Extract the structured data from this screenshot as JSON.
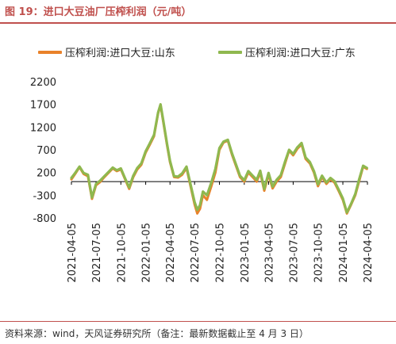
{
  "figure": {
    "title": "图 19：进口大豆油厂压榨利润（元/吨）",
    "source": "资料来源：wind，天风证券研究所（备注：最新数据截止至 4 月 3 日）"
  },
  "chart_data": {
    "type": "line",
    "title": "",
    "xlabel": "",
    "ylabel": "",
    "ylim": [
      -800,
      2200
    ],
    "yticks": [
      -800,
      -300,
      200,
      700,
      1200,
      1700,
      2200
    ],
    "ytick_labels": [
      "-800",
      "-300",
      "200",
      "700",
      "1200",
      "1700",
      "2200"
    ],
    "xlim": [
      "2021-04-05",
      "2024-04-05"
    ],
    "xticks": [
      "2021-04-05",
      "2021-07-05",
      "2021-10-05",
      "2022-01-05",
      "2022-04-05",
      "2022-07-05",
      "2022-10-05",
      "2023-01-05",
      "2023-04-05",
      "2023-07-05",
      "2023-10-05",
      "2024-01-05",
      "2024-04-05"
    ],
    "grid": false,
    "legend_position": "top",
    "series": [
      {
        "name": "压榨利润:进口大豆:山东",
        "color": "#e9822a",
        "points": [
          [
            "2021-04-05",
            50
          ],
          [
            "2021-04-20",
            180
          ],
          [
            "2021-05-05",
            320
          ],
          [
            "2021-05-20",
            170
          ],
          [
            "2021-06-05",
            120
          ],
          [
            "2021-06-20",
            -380
          ],
          [
            "2021-07-05",
            -80
          ],
          [
            "2021-07-20",
            -10
          ],
          [
            "2021-08-05",
            100
          ],
          [
            "2021-08-20",
            190
          ],
          [
            "2021-09-05",
            290
          ],
          [
            "2021-09-20",
            230
          ],
          [
            "2021-10-05",
            270
          ],
          [
            "2021-10-20",
            60
          ],
          [
            "2021-11-05",
            -160
          ],
          [
            "2021-11-20",
            100
          ],
          [
            "2021-12-05",
            270
          ],
          [
            "2021-12-20",
            370
          ],
          [
            "2022-01-05",
            640
          ],
          [
            "2022-01-20",
            810
          ],
          [
            "2022-02-05",
            1000
          ],
          [
            "2022-02-20",
            1500
          ],
          [
            "2022-03-01",
            1680
          ],
          [
            "2022-03-10",
            1350
          ],
          [
            "2022-03-25",
            800
          ],
          [
            "2022-04-05",
            430
          ],
          [
            "2022-04-20",
            100
          ],
          [
            "2022-05-05",
            90
          ],
          [
            "2022-05-20",
            150
          ],
          [
            "2022-06-05",
            300
          ],
          [
            "2022-06-20",
            -100
          ],
          [
            "2022-07-05",
            -500
          ],
          [
            "2022-07-15",
            -700
          ],
          [
            "2022-07-25",
            -600
          ],
          [
            "2022-08-05",
            -300
          ],
          [
            "2022-08-20",
            -400
          ],
          [
            "2022-09-05",
            -100
          ],
          [
            "2022-09-20",
            200
          ],
          [
            "2022-10-05",
            700
          ],
          [
            "2022-10-20",
            860
          ],
          [
            "2022-11-05",
            900
          ],
          [
            "2022-11-20",
            600
          ],
          [
            "2022-12-05",
            350
          ],
          [
            "2022-12-20",
            100
          ],
          [
            "2023-01-05",
            0
          ],
          [
            "2023-01-20",
            200
          ],
          [
            "2023-02-05",
            100
          ],
          [
            "2023-02-20",
            0
          ],
          [
            "2023-03-05",
            200
          ],
          [
            "2023-03-20",
            -200
          ],
          [
            "2023-04-05",
            150
          ],
          [
            "2023-04-20",
            -150
          ],
          [
            "2023-05-05",
            0
          ],
          [
            "2023-05-20",
            100
          ],
          [
            "2023-06-05",
            400
          ],
          [
            "2023-06-20",
            680
          ],
          [
            "2023-07-05",
            580
          ],
          [
            "2023-07-20",
            720
          ],
          [
            "2023-08-05",
            820
          ],
          [
            "2023-08-20",
            500
          ],
          [
            "2023-09-05",
            400
          ],
          [
            "2023-09-20",
            200
          ],
          [
            "2023-10-05",
            -100
          ],
          [
            "2023-10-20",
            100
          ],
          [
            "2023-11-05",
            -50
          ],
          [
            "2023-11-20",
            50
          ],
          [
            "2023-12-05",
            -20
          ],
          [
            "2023-12-20",
            -200
          ],
          [
            "2024-01-05",
            -400
          ],
          [
            "2024-01-20",
            -700
          ],
          [
            "2024-02-05",
            -500
          ],
          [
            "2024-02-20",
            -300
          ],
          [
            "2024-03-05",
            0
          ],
          [
            "2024-03-20",
            330
          ],
          [
            "2024-04-03",
            280
          ]
        ]
      },
      {
        "name": "压榨利润:进口大豆:广东",
        "color": "#8fb84f",
        "points": [
          [
            "2021-04-05",
            80
          ],
          [
            "2021-04-20",
            200
          ],
          [
            "2021-05-05",
            330
          ],
          [
            "2021-05-20",
            190
          ],
          [
            "2021-06-05",
            150
          ],
          [
            "2021-06-20",
            -350
          ],
          [
            "2021-07-05",
            -50
          ],
          [
            "2021-07-20",
            20
          ],
          [
            "2021-08-05",
            120
          ],
          [
            "2021-08-20",
            210
          ],
          [
            "2021-09-05",
            310
          ],
          [
            "2021-09-20",
            250
          ],
          [
            "2021-10-05",
            290
          ],
          [
            "2021-10-20",
            80
          ],
          [
            "2021-11-05",
            -130
          ],
          [
            "2021-11-20",
            130
          ],
          [
            "2021-12-05",
            300
          ],
          [
            "2021-12-20",
            400
          ],
          [
            "2022-01-05",
            670
          ],
          [
            "2022-01-20",
            840
          ],
          [
            "2022-02-05",
            1030
          ],
          [
            "2022-02-20",
            1520
          ],
          [
            "2022-03-01",
            1700
          ],
          [
            "2022-03-10",
            1380
          ],
          [
            "2022-03-25",
            830
          ],
          [
            "2022-04-05",
            460
          ],
          [
            "2022-04-20",
            120
          ],
          [
            "2022-05-05",
            110
          ],
          [
            "2022-05-20",
            180
          ],
          [
            "2022-06-05",
            330
          ],
          [
            "2022-06-20",
            -60
          ],
          [
            "2022-07-05",
            -450
          ],
          [
            "2022-07-15",
            -620
          ],
          [
            "2022-07-25",
            -520
          ],
          [
            "2022-08-05",
            -220
          ],
          [
            "2022-08-20",
            -300
          ],
          [
            "2022-09-05",
            -20
          ],
          [
            "2022-09-20",
            280
          ],
          [
            "2022-10-05",
            740
          ],
          [
            "2022-10-20",
            880
          ],
          [
            "2022-11-05",
            920
          ],
          [
            "2022-11-20",
            630
          ],
          [
            "2022-12-05",
            380
          ],
          [
            "2022-12-20",
            130
          ],
          [
            "2023-01-05",
            30
          ],
          [
            "2023-01-20",
            230
          ],
          [
            "2023-02-05",
            130
          ],
          [
            "2023-02-20",
            40
          ],
          [
            "2023-03-05",
            240
          ],
          [
            "2023-03-20",
            -160
          ],
          [
            "2023-04-05",
            190
          ],
          [
            "2023-04-20",
            -110
          ],
          [
            "2023-05-05",
            40
          ],
          [
            "2023-05-20",
            140
          ],
          [
            "2023-06-05",
            440
          ],
          [
            "2023-06-20",
            700
          ],
          [
            "2023-07-05",
            610
          ],
          [
            "2023-07-20",
            750
          ],
          [
            "2023-08-05",
            850
          ],
          [
            "2023-08-20",
            530
          ],
          [
            "2023-09-05",
            430
          ],
          [
            "2023-09-20",
            230
          ],
          [
            "2023-10-05",
            -60
          ],
          [
            "2023-10-20",
            130
          ],
          [
            "2023-11-05",
            -20
          ],
          [
            "2023-11-20",
            80
          ],
          [
            "2023-12-05",
            10
          ],
          [
            "2023-12-20",
            -170
          ],
          [
            "2024-01-05",
            -370
          ],
          [
            "2024-01-20",
            -680
          ],
          [
            "2024-02-05",
            -480
          ],
          [
            "2024-02-20",
            -270
          ],
          [
            "2024-03-05",
            40
          ],
          [
            "2024-03-20",
            350
          ],
          [
            "2024-04-03",
            300
          ]
        ]
      }
    ]
  }
}
